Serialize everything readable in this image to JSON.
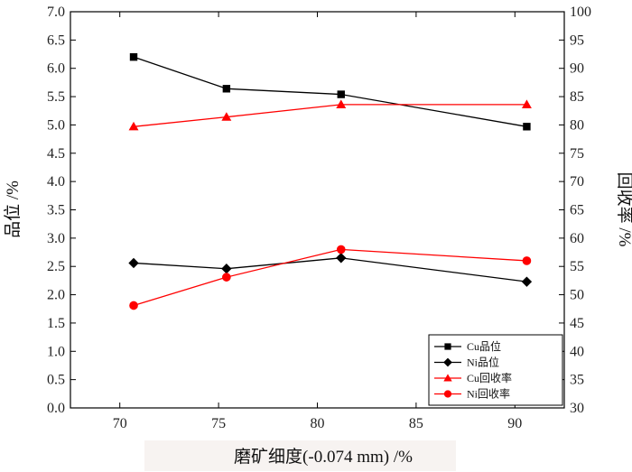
{
  "chart_data": {
    "type": "line",
    "xlabel": "磨矿细度(-0.074 mm) /%",
    "ylabel_left": "品位 /%",
    "ylabel_right": "回收率 /%",
    "xlim": [
      67.5,
      92.5
    ],
    "ylim_left": [
      0.0,
      7.0
    ],
    "ylim_right": [
      30,
      100
    ],
    "xticks": [
      70,
      75,
      80,
      85,
      90
    ],
    "xtick_labels": [
      "70",
      "75",
      "80",
      "85",
      "90"
    ],
    "yticks_left": [
      0.0,
      0.5,
      1.0,
      1.5,
      2.0,
      2.5,
      3.0,
      3.5,
      4.0,
      4.5,
      5.0,
      5.5,
      6.0,
      6.5,
      7.0
    ],
    "ytick_labels_left": [
      "0.0",
      "0.5",
      "1.0",
      "1.5",
      "2.0",
      "2.5",
      "3.0",
      "3.5",
      "4.0",
      "4.5",
      "5.0",
      "5.5",
      "6.0",
      "6.5",
      "7.0"
    ],
    "yticks_right": [
      30,
      35,
      40,
      45,
      50,
      55,
      60,
      65,
      70,
      75,
      80,
      85,
      90,
      95,
      100
    ],
    "ytick_labels_right": [
      "30",
      "35",
      "40",
      "45",
      "50",
      "55",
      "60",
      "65",
      "70",
      "75",
      "80",
      "85",
      "90",
      "95",
      "100"
    ],
    "grid": false,
    "legend_position": "bottom-right",
    "x": [
      70.7,
      75.4,
      81.2,
      90.6
    ],
    "series": [
      {
        "name": "Cu品位",
        "axis": "left",
        "color": "#000000",
        "marker": "square",
        "values": [
          6.2,
          5.64,
          5.54,
          4.97
        ]
      },
      {
        "name": "Ni品位",
        "axis": "left",
        "color": "#000000",
        "marker": "diamond",
        "values": [
          2.56,
          2.46,
          2.65,
          2.23
        ]
      },
      {
        "name": "Cu回收率",
        "axis": "right",
        "color": "#ff0000",
        "marker": "triangle",
        "values": [
          79.7,
          81.4,
          83.6,
          83.6
        ]
      },
      {
        "name": "Ni回收率",
        "axis": "right",
        "color": "#ff0000",
        "marker": "circle",
        "values": [
          48.1,
          53.1,
          58.0,
          56.0
        ]
      }
    ]
  }
}
